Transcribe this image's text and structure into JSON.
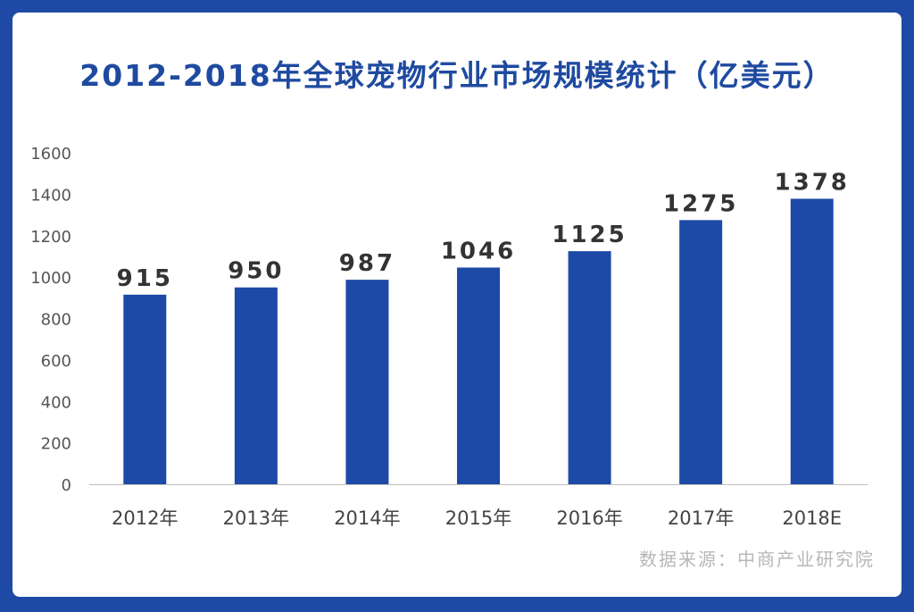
{
  "chart_data": {
    "type": "bar",
    "title": "2012-2018年全球宠物行业市场规模统计（亿美元）",
    "categories": [
      "2012年",
      "2013年",
      "2014年",
      "2015年",
      "2016年",
      "2017年",
      "2018E"
    ],
    "series": [
      {
        "values": [
          915,
          950,
          987,
          1046,
          1125,
          1275,
          1378
        ]
      }
    ],
    "data_labels": [
      "915",
      "950",
      "987",
      "1046",
      "1125",
      "1275",
      "1378"
    ],
    "yticks": [
      "0",
      "200",
      "400",
      "600",
      "800",
      "1000",
      "1200",
      "1400",
      "1600"
    ],
    "ylim": [
      0,
      1600
    ],
    "xlabel": "",
    "ylabel": "",
    "grid": false,
    "legend": "none",
    "colors": {
      "bar": "#1c4aa6",
      "axis": "#bfbfbf"
    }
  },
  "source": "数据来源：中商产业研究院",
  "colors": {
    "frame": "#1e4aa6",
    "card": "#ffffff",
    "title": "#1f4aa0"
  }
}
